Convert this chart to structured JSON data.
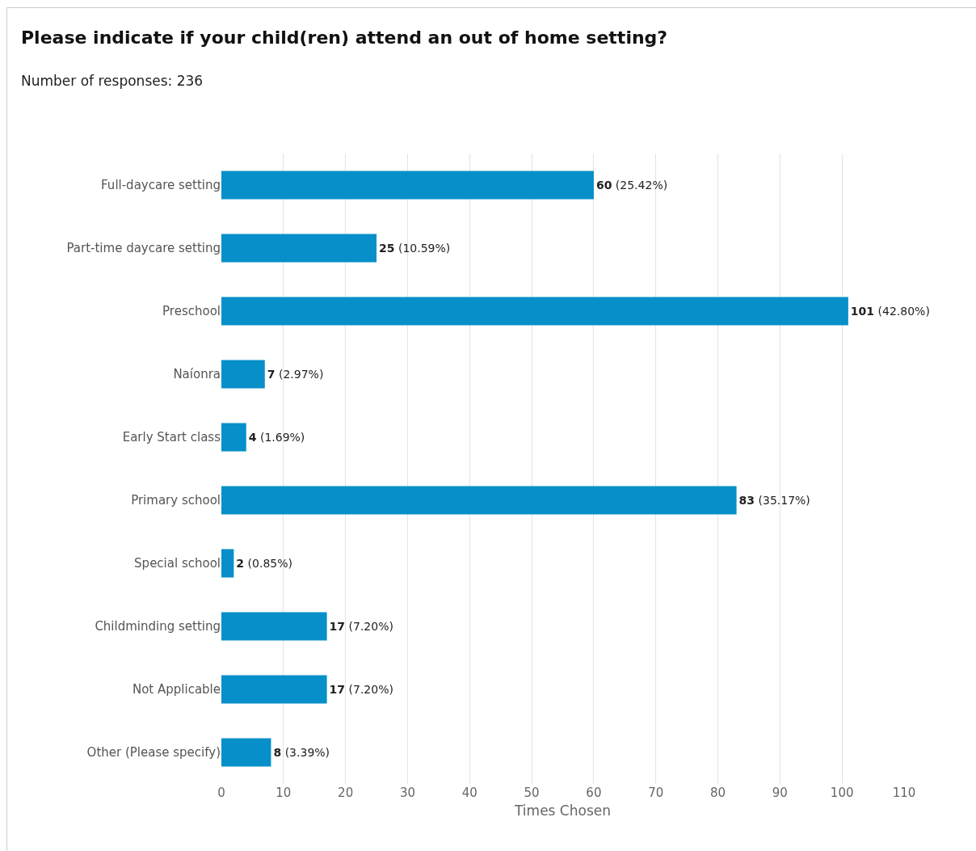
{
  "chart_data": {
    "type": "bar",
    "orientation": "horizontal",
    "title": "Please indicate if your child(ren) attend an out of home setting?",
    "subtitle": "Number of responses: 236",
    "xlabel": "Times Chosen",
    "categories": [
      "Full-daycare setting",
      "Part-time daycare setting",
      "Preschool",
      "Naíonra",
      "Early Start class",
      "Primary school",
      "Special school",
      "Childminding setting",
      "Not Applicable",
      "Other (Please specify)"
    ],
    "values": [
      60,
      25,
      101,
      7,
      4,
      83,
      2,
      17,
      17,
      8
    ],
    "value_labels": [
      "60 (25.42%)",
      "25 (10.59%)",
      "101 (42.80%)",
      "7 (2.97%)",
      "4 (1.69%)",
      "83 (35.17%)",
      "2 (0.85%)",
      "17 (7.20%)",
      "17 (7.20%)",
      "8 (3.39%)"
    ],
    "color": "#068fc9",
    "xlim": [
      0,
      110
    ],
    "xticks": [
      0,
      10,
      20,
      30,
      40,
      50,
      60,
      70,
      80,
      90,
      100,
      110
    ],
    "grid": "x",
    "legend": false
  }
}
